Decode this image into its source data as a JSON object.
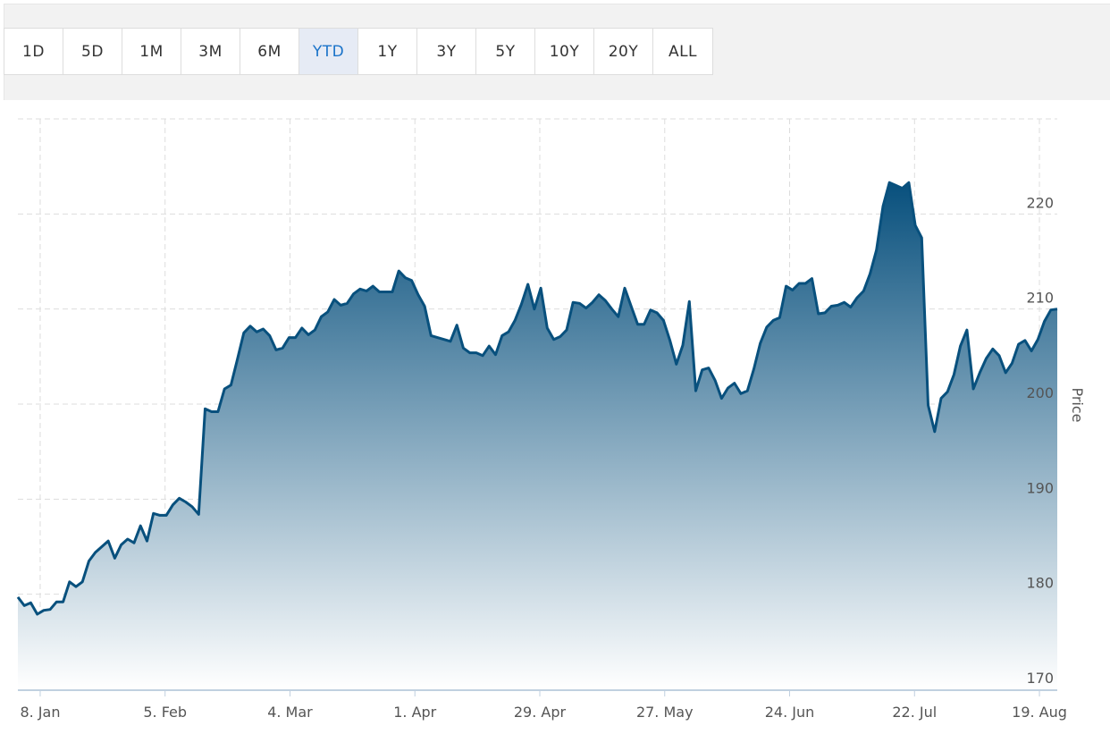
{
  "toolbar": {
    "ranges": [
      "1D",
      "5D",
      "1M",
      "3M",
      "6M",
      "YTD",
      "1Y",
      "3Y",
      "5Y",
      "10Y",
      "20Y",
      "ALL"
    ],
    "active_range": "YTD"
  },
  "chart_data": {
    "type": "area",
    "title": "",
    "xlabel": "",
    "ylabel": "Price",
    "x_start": "2024-01-03",
    "x_end": "2024-08-23",
    "xlim": [
      "2024-01-03",
      "2024-08-23"
    ],
    "ylim": [
      170,
      230
    ],
    "y_ticks": [
      170,
      180,
      190,
      200,
      210,
      220
    ],
    "x_ticks": [
      {
        "label": "8. Jan",
        "date": "2024-01-08"
      },
      {
        "label": "5. Feb",
        "date": "2024-02-05"
      },
      {
        "label": "4. Mar",
        "date": "2024-03-04"
      },
      {
        "label": "1. Apr",
        "date": "2024-04-01"
      },
      {
        "label": "29. Apr",
        "date": "2024-04-29"
      },
      {
        "label": "27. May",
        "date": "2024-05-27"
      },
      {
        "label": "24. Jun",
        "date": "2024-06-24"
      },
      {
        "label": "22. Jul",
        "date": "2024-07-22"
      },
      {
        "label": "19. Aug",
        "date": "2024-08-19"
      }
    ],
    "grid": true,
    "colors": {
      "line": "#08507d",
      "fill_top": "#08507d",
      "fill_bottom": "#ffffff",
      "grid": "#dddddd"
    },
    "series": [
      {
        "values": [
          179.7,
          178.8,
          179.1,
          177.9,
          178.3,
          178.4,
          179.2,
          179.2,
          181.3,
          180.8,
          181.3,
          183.5,
          184.4,
          185.0,
          185.6,
          183.8,
          185.2,
          185.8,
          185.4,
          187.2,
          185.6,
          188.5,
          188.3,
          188.3,
          189.4,
          190.1,
          189.7,
          189.2,
          188.4,
          199.5,
          199.2,
          199.2,
          201.6,
          202.0,
          204.7,
          207.5,
          208.2,
          207.6,
          207.9,
          207.2,
          205.7,
          205.9,
          207.0,
          207.0,
          208.0,
          207.3,
          207.8,
          209.2,
          209.7,
          211.0,
          210.4,
          210.6,
          211.6,
          212.1,
          211.9,
          212.4,
          211.8,
          211.8,
          211.8,
          214.0,
          213.3,
          213.0,
          211.5,
          210.3,
          207.2,
          207.0,
          206.8,
          206.6,
          208.3,
          205.9,
          205.4,
          205.4,
          205.1,
          206.1,
          205.2,
          207.2,
          207.6,
          208.8,
          210.5,
          212.6,
          210.0,
          212.2,
          208.0,
          206.8,
          207.1,
          207.8,
          210.7,
          210.6,
          210.1,
          210.7,
          211.5,
          210.9,
          210.0,
          209.2,
          212.2,
          210.3,
          208.4,
          208.4,
          209.9,
          209.6,
          208.8,
          206.7,
          204.2,
          206.2,
          210.8,
          201.4,
          203.6,
          203.8,
          202.5,
          200.6,
          201.7,
          202.2,
          201.1,
          201.4,
          203.7,
          206.4,
          208.1,
          208.8,
          209.1,
          212.4,
          212.0,
          212.7,
          212.7,
          213.2,
          209.5,
          209.6,
          210.3,
          210.4,
          210.7,
          210.2,
          211.2,
          211.9,
          213.7,
          216.2,
          220.8,
          223.3,
          223.0,
          222.7,
          223.3,
          218.8,
          217.5,
          199.9,
          197.1,
          200.6,
          201.3,
          203.1,
          206.1,
          207.8,
          201.6,
          203.3,
          204.8,
          205.8,
          205.1,
          203.3,
          204.3,
          206.3,
          206.7,
          205.6,
          206.8,
          208.7,
          209.9,
          210.0
        ]
      }
    ]
  }
}
